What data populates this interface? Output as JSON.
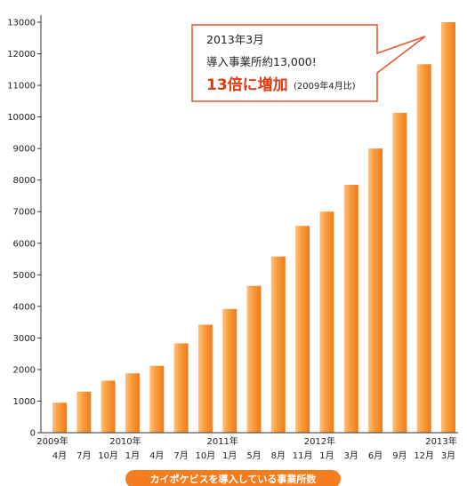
{
  "chart_data": {
    "type": "bar",
    "categories": [
      "2009年4月",
      "2009年7月",
      "2009年10月",
      "2010年1月",
      "2010年4月",
      "2010年7月",
      "2010年10月",
      "2011年1月",
      "2011年5月",
      "2011年8月",
      "2011年11月",
      "2012年1月",
      "2012年3月",
      "2012年6月",
      "2012年9月",
      "2012年12月",
      "2013年3月"
    ],
    "values": [
      950,
      1300,
      1650,
      1880,
      2120,
      2830,
      3420,
      3920,
      4650,
      5580,
      6550,
      7000,
      7850,
      9000,
      10130,
      11670,
      13000
    ],
    "x_month_labels": [
      "4月",
      "7月",
      "10月",
      "1月",
      "4月",
      "7月",
      "10月",
      "1月",
      "5月",
      "8月",
      "11月",
      "1月",
      "3月",
      "6月",
      "9月",
      "12月",
      "3月"
    ],
    "x_year_labels": [
      {
        "label": "2009年",
        "index": 0
      },
      {
        "label": "2010年",
        "index": 3
      },
      {
        "label": "2011年",
        "index": 7
      },
      {
        "label": "2012年",
        "index": 11
      },
      {
        "label": "2013年",
        "index": 16
      }
    ],
    "ylim": [
      0,
      13000
    ],
    "yticks": [
      0,
      1000,
      2000,
      3000,
      4000,
      5000,
      6000,
      7000,
      8000,
      9000,
      10000,
      11000,
      12000,
      13000
    ],
    "title": "",
    "xlabel": "カイポケビスを導入している事業所数",
    "ylabel": "",
    "grid": false,
    "bar_color": "#f7922d",
    "bar_color_light": "#ffc07a",
    "annotation": {
      "line1": "2013年3月",
      "line2": "導入事業所約13,000!",
      "emphasis": "13倍に増加",
      "note": "(2009年4月比)",
      "border_color": "#e8532a",
      "emphasis_color": "#e23a12"
    },
    "caption_color": "#f57c1f"
  }
}
